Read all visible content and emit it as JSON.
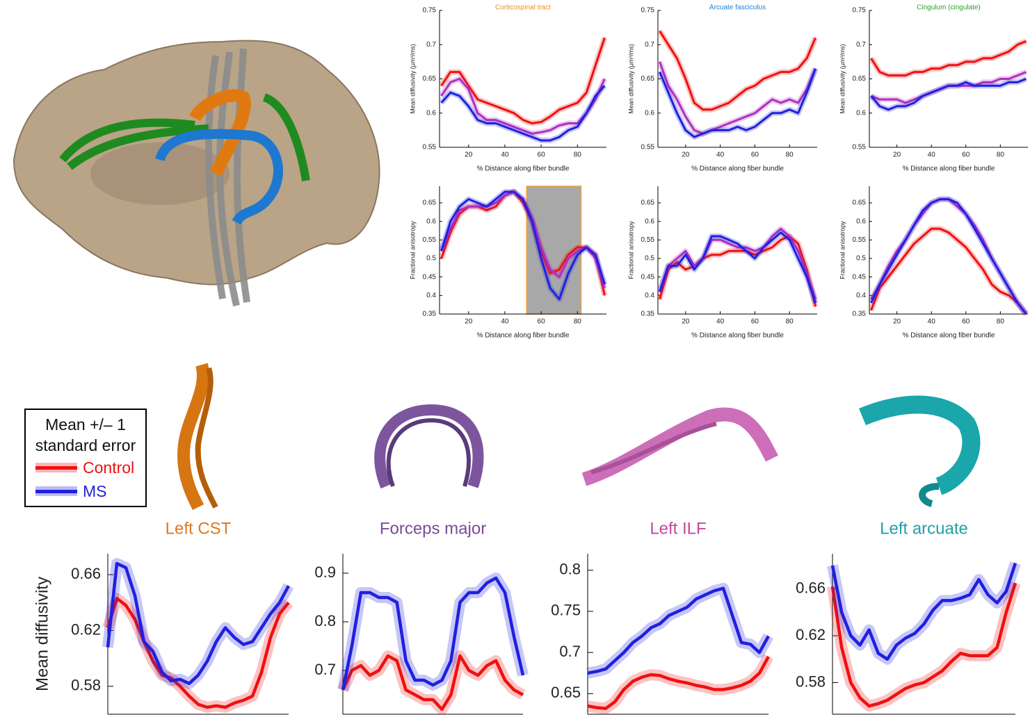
{
  "chart_data": [
    {
      "type": "line",
      "title": "Corticospinal tract",
      "title_color": "#e8901a",
      "ylabel": "Mean diffusivity (μm²/ms)",
      "xlabel": "% Distance along fiber bundle",
      "x": [
        5,
        10,
        15,
        20,
        25,
        30,
        35,
        40,
        45,
        50,
        55,
        60,
        65,
        70,
        75,
        80,
        85,
        90,
        95
      ],
      "xlim": [
        4,
        96
      ],
      "xticks": [
        20,
        40,
        60,
        80
      ],
      "ylim": [
        0.55,
        0.75
      ],
      "yticks": [
        0.55,
        0.6,
        0.65,
        0.7,
        0.75
      ],
      "series": [
        {
          "color": "#f01010",
          "values": [
            0.64,
            0.66,
            0.66,
            0.64,
            0.62,
            0.615,
            0.61,
            0.605,
            0.6,
            0.59,
            0.585,
            0.587,
            0.595,
            0.605,
            0.61,
            0.615,
            0.63,
            0.67,
            0.71
          ]
        },
        {
          "color": "#b030c0",
          "values": [
            0.625,
            0.645,
            0.65,
            0.635,
            0.6,
            0.59,
            0.59,
            0.585,
            0.58,
            0.575,
            0.57,
            0.572,
            0.575,
            0.582,
            0.585,
            0.585,
            0.6,
            0.62,
            0.65
          ]
        },
        {
          "color": "#2020e0",
          "values": [
            0.615,
            0.63,
            0.625,
            0.61,
            0.59,
            0.585,
            0.585,
            0.58,
            0.575,
            0.57,
            0.565,
            0.56,
            0.56,
            0.565,
            0.575,
            0.58,
            0.6,
            0.625,
            0.64
          ]
        }
      ]
    },
    {
      "type": "line",
      "title": "Arcuate fasciculus",
      "title_color": "#2080d0",
      "ylabel": "Mean diffusivity (μm²/ms)",
      "xlabel": "% Distance along fiber bundle",
      "x": [
        5,
        10,
        15,
        20,
        25,
        30,
        35,
        40,
        45,
        50,
        55,
        60,
        65,
        70,
        75,
        80,
        85,
        90,
        95
      ],
      "xlim": [
        4,
        96
      ],
      "xticks": [
        20,
        40,
        60,
        80
      ],
      "ylim": [
        0.55,
        0.75
      ],
      "yticks": [
        0.55,
        0.6,
        0.65,
        0.7,
        0.75
      ],
      "series": [
        {
          "color": "#f01010",
          "values": [
            0.72,
            0.7,
            0.68,
            0.65,
            0.615,
            0.605,
            0.605,
            0.61,
            0.615,
            0.625,
            0.635,
            0.64,
            0.65,
            0.655,
            0.66,
            0.66,
            0.665,
            0.68,
            0.71
          ]
        },
        {
          "color": "#b030c0",
          "values": [
            0.675,
            0.64,
            0.62,
            0.595,
            0.575,
            0.57,
            0.575,
            0.58,
            0.585,
            0.59,
            0.595,
            0.6,
            0.61,
            0.62,
            0.615,
            0.62,
            0.615,
            0.635,
            0.665
          ]
        },
        {
          "color": "#2020e0",
          "values": [
            0.66,
            0.63,
            0.6,
            0.575,
            0.565,
            0.57,
            0.575,
            0.575,
            0.575,
            0.58,
            0.575,
            0.58,
            0.59,
            0.6,
            0.6,
            0.605,
            0.6,
            0.63,
            0.665
          ]
        }
      ]
    },
    {
      "type": "line",
      "title": "Cingulum (cingulate)",
      "title_color": "#2aa02a",
      "ylabel": "Mean diffusivity (μm²/ms)",
      "xlabel": "% Distance along fiber bundle",
      "x": [
        5,
        10,
        15,
        20,
        25,
        30,
        35,
        40,
        45,
        50,
        55,
        60,
        65,
        70,
        75,
        80,
        85,
        90,
        95
      ],
      "xlim": [
        4,
        96
      ],
      "xticks": [
        20,
        40,
        60,
        80
      ],
      "ylim": [
        0.55,
        0.75
      ],
      "yticks": [
        0.55,
        0.6,
        0.65,
        0.7,
        0.75
      ],
      "series": [
        {
          "color": "#f01010",
          "values": [
            0.68,
            0.66,
            0.655,
            0.655,
            0.655,
            0.66,
            0.66,
            0.665,
            0.665,
            0.67,
            0.67,
            0.675,
            0.675,
            0.68,
            0.68,
            0.685,
            0.69,
            0.7,
            0.705
          ]
        },
        {
          "color": "#b030c0",
          "values": [
            0.625,
            0.62,
            0.62,
            0.62,
            0.615,
            0.62,
            0.625,
            0.63,
            0.635,
            0.64,
            0.64,
            0.64,
            0.64,
            0.645,
            0.645,
            0.65,
            0.65,
            0.655,
            0.66
          ]
        },
        {
          "color": "#2020e0",
          "values": [
            0.625,
            0.61,
            0.605,
            0.61,
            0.61,
            0.615,
            0.625,
            0.63,
            0.635,
            0.64,
            0.64,
            0.645,
            0.64,
            0.64,
            0.64,
            0.64,
            0.645,
            0.645,
            0.65
          ]
        }
      ]
    },
    {
      "type": "line",
      "ylabel": "Fractional anisotropy",
      "xlabel": "% Distance along fiber bundle",
      "highlight_xrange": [
        52,
        82
      ],
      "x": [
        5,
        10,
        15,
        20,
        25,
        30,
        35,
        40,
        45,
        50,
        55,
        60,
        65,
        70,
        75,
        80,
        85,
        90,
        95
      ],
      "xlim": [
        4,
        96
      ],
      "xticks": [
        20,
        40,
        60,
        80
      ],
      "ylim": [
        0.35,
        0.695
      ],
      "yticks": [
        0.35,
        0.4,
        0.45,
        0.5,
        0.55,
        0.6,
        0.65
      ],
      "series": [
        {
          "color": "#f01010",
          "values": [
            0.5,
            0.57,
            0.62,
            0.64,
            0.64,
            0.63,
            0.64,
            0.67,
            0.68,
            0.65,
            0.6,
            0.52,
            0.46,
            0.47,
            0.51,
            0.53,
            0.53,
            0.51,
            0.4
          ]
        },
        {
          "color": "#b030c0",
          "values": [
            0.52,
            0.58,
            0.63,
            0.64,
            0.64,
            0.64,
            0.65,
            0.67,
            0.68,
            0.66,
            0.61,
            0.53,
            0.47,
            0.45,
            0.5,
            0.52,
            0.53,
            0.5,
            0.42
          ]
        },
        {
          "color": "#2020e0",
          "values": [
            0.52,
            0.6,
            0.64,
            0.66,
            0.65,
            0.64,
            0.66,
            0.68,
            0.68,
            0.66,
            0.6,
            0.5,
            0.42,
            0.39,
            0.46,
            0.51,
            0.53,
            0.51,
            0.43
          ]
        }
      ]
    },
    {
      "type": "line",
      "ylabel": "Fractional anisotropy",
      "xlabel": "% Distance along fiber bundle",
      "x": [
        5,
        10,
        15,
        20,
        25,
        30,
        35,
        40,
        45,
        50,
        55,
        60,
        65,
        70,
        75,
        80,
        85,
        90,
        95
      ],
      "xlim": [
        4,
        96
      ],
      "xticks": [
        20,
        40,
        60,
        80
      ],
      "ylim": [
        0.35,
        0.695
      ],
      "yticks": [
        0.35,
        0.4,
        0.45,
        0.5,
        0.55,
        0.6,
        0.65
      ],
      "series": [
        {
          "color": "#f01010",
          "values": [
            0.39,
            0.47,
            0.49,
            0.47,
            0.48,
            0.5,
            0.51,
            0.51,
            0.52,
            0.52,
            0.52,
            0.51,
            0.52,
            0.53,
            0.55,
            0.56,
            0.54,
            0.47,
            0.37
          ]
        },
        {
          "color": "#b030c0",
          "values": [
            0.41,
            0.48,
            0.5,
            0.52,
            0.48,
            0.5,
            0.55,
            0.55,
            0.54,
            0.53,
            0.53,
            0.52,
            0.53,
            0.56,
            0.58,
            0.56,
            0.52,
            0.46,
            0.39
          ]
        },
        {
          "color": "#2020e0",
          "values": [
            0.41,
            0.48,
            0.48,
            0.51,
            0.47,
            0.5,
            0.56,
            0.56,
            0.55,
            0.54,
            0.52,
            0.5,
            0.53,
            0.55,
            0.57,
            0.55,
            0.5,
            0.45,
            0.38
          ]
        }
      ]
    },
    {
      "type": "line",
      "ylabel": "Fractional anisotropy",
      "xlabel": "% Distance along fiber bundle",
      "x": [
        5,
        10,
        15,
        20,
        25,
        30,
        35,
        40,
        45,
        50,
        55,
        60,
        65,
        70,
        75,
        80,
        85,
        90,
        95
      ],
      "xlim": [
        4,
        96
      ],
      "xticks": [
        20,
        40,
        60,
        80
      ],
      "ylim": [
        0.35,
        0.695
      ],
      "yticks": [
        0.35,
        0.4,
        0.45,
        0.5,
        0.55,
        0.6,
        0.65
      ],
      "series": [
        {
          "color": "#f01010",
          "values": [
            0.36,
            0.42,
            0.45,
            0.48,
            0.51,
            0.54,
            0.56,
            0.58,
            0.58,
            0.57,
            0.55,
            0.53,
            0.5,
            0.47,
            0.43,
            0.41,
            0.4,
            0.38,
            0.35
          ]
        },
        {
          "color": "#b030c0",
          "values": [
            0.39,
            0.43,
            0.48,
            0.52,
            0.55,
            0.59,
            0.62,
            0.65,
            0.66,
            0.66,
            0.64,
            0.62,
            0.59,
            0.55,
            0.5,
            0.46,
            0.42,
            0.38,
            0.35
          ]
        },
        {
          "color": "#2020e0",
          "values": [
            0.38,
            0.43,
            0.47,
            0.51,
            0.55,
            0.59,
            0.63,
            0.65,
            0.66,
            0.66,
            0.65,
            0.62,
            0.58,
            0.54,
            0.5,
            0.46,
            0.42,
            0.38,
            0.35
          ]
        }
      ]
    },
    {
      "type": "line",
      "title": "Left CST",
      "title_color": "#e07820",
      "ylabel": "Mean diffusivity",
      "legend_title": "Mean +/– 1 standard error",
      "x": [
        0,
        5,
        10,
        15,
        20,
        25,
        30,
        35,
        40,
        45,
        50,
        55,
        60,
        65,
        70,
        75,
        80,
        85,
        90,
        95,
        100
      ],
      "xlim": [
        0,
        100
      ],
      "ylim": [
        0.56,
        0.675
      ],
      "yticks": [
        0.58,
        0.62,
        0.66
      ],
      "series": [
        {
          "name": "Control",
          "color": "#f01010",
          "values": [
            0.622,
            0.643,
            0.638,
            0.628,
            0.612,
            0.598,
            0.588,
            0.586,
            0.58,
            0.573,
            0.567,
            0.565,
            0.566,
            0.565,
            0.568,
            0.57,
            0.573,
            0.59,
            0.615,
            0.632,
            0.64
          ]
        },
        {
          "name": "MS",
          "color": "#2020e0",
          "values": [
            0.608,
            0.668,
            0.665,
            0.645,
            0.612,
            0.605,
            0.59,
            0.584,
            0.585,
            0.582,
            0.588,
            0.598,
            0.612,
            0.622,
            0.615,
            0.61,
            0.612,
            0.622,
            0.632,
            0.64,
            0.652
          ]
        }
      ]
    },
    {
      "type": "line",
      "title": "Forceps major",
      "title_color": "#7a4a98",
      "x": [
        0,
        5,
        10,
        15,
        20,
        25,
        30,
        35,
        40,
        45,
        50,
        55,
        60,
        65,
        70,
        75,
        80,
        85,
        90,
        95,
        100
      ],
      "xlim": [
        0,
        100
      ],
      "ylim": [
        0.61,
        0.94
      ],
      "yticks": [
        0.7,
        0.8,
        0.9
      ],
      "series": [
        {
          "color": "#f01010",
          "values": [
            0.66,
            0.7,
            0.71,
            0.69,
            0.7,
            0.73,
            0.72,
            0.66,
            0.65,
            0.64,
            0.64,
            0.62,
            0.65,
            0.73,
            0.7,
            0.69,
            0.71,
            0.72,
            0.68,
            0.66,
            0.65
          ]
        },
        {
          "color": "#2020e0",
          "values": [
            0.66,
            0.75,
            0.86,
            0.86,
            0.85,
            0.85,
            0.84,
            0.72,
            0.68,
            0.68,
            0.67,
            0.68,
            0.72,
            0.84,
            0.86,
            0.86,
            0.88,
            0.89,
            0.86,
            0.77,
            0.69
          ]
        }
      ]
    },
    {
      "type": "line",
      "title": "Left ILF",
      "title_color": "#c04aa0",
      "x": [
        0,
        5,
        10,
        15,
        20,
        25,
        30,
        35,
        40,
        45,
        50,
        55,
        60,
        65,
        70,
        75,
        80,
        85,
        90,
        95,
        100
      ],
      "xlim": [
        0,
        100
      ],
      "ylim": [
        0.625,
        0.82
      ],
      "yticks": [
        0.65,
        0.7,
        0.75,
        0.8
      ],
      "series": [
        {
          "color": "#f01010",
          "values": [
            0.635,
            0.633,
            0.632,
            0.64,
            0.655,
            0.665,
            0.67,
            0.673,
            0.672,
            0.668,
            0.665,
            0.663,
            0.66,
            0.658,
            0.655,
            0.655,
            0.657,
            0.66,
            0.665,
            0.675,
            0.695
          ]
        },
        {
          "color": "#2020e0",
          "values": [
            0.675,
            0.677,
            0.68,
            0.69,
            0.7,
            0.712,
            0.72,
            0.73,
            0.735,
            0.745,
            0.75,
            0.755,
            0.765,
            0.77,
            0.775,
            0.778,
            0.745,
            0.712,
            0.71,
            0.7,
            0.72
          ]
        }
      ]
    },
    {
      "type": "line",
      "title": "Left arcuate",
      "title_color": "#20a0a8",
      "x": [
        0,
        5,
        10,
        15,
        20,
        25,
        30,
        35,
        40,
        45,
        50,
        55,
        60,
        65,
        70,
        75,
        80,
        85,
        90,
        95,
        100
      ],
      "xlim": [
        0,
        100
      ],
      "ylim": [
        0.553,
        0.69
      ],
      "yticks": [
        0.58,
        0.62,
        0.66
      ],
      "series": [
        {
          "color": "#f01010",
          "values": [
            0.662,
            0.61,
            0.58,
            0.567,
            0.56,
            0.562,
            0.565,
            0.57,
            0.575,
            0.578,
            0.58,
            0.585,
            0.59,
            0.598,
            0.605,
            0.603,
            0.603,
            0.603,
            0.61,
            0.64,
            0.665
          ]
        },
        {
          "color": "#2020e0",
          "values": [
            0.68,
            0.64,
            0.62,
            0.612,
            0.625,
            0.605,
            0.6,
            0.612,
            0.618,
            0.622,
            0.63,
            0.642,
            0.65,
            0.65,
            0.652,
            0.655,
            0.668,
            0.655,
            0.648,
            0.658,
            0.682
          ]
        }
      ]
    }
  ]
}
